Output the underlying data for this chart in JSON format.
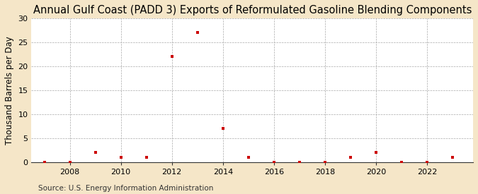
{
  "title": "Annual Gulf Coast (PADD 3) Exports of Reformulated Gasoline Blending Components",
  "ylabel": "Thousand Barrels per Day",
  "source": "Source: U.S. Energy Information Administration",
  "figure_bg_color": "#f5e6c8",
  "axes_bg_color": "#ffffff",
  "years": [
    2007,
    2008,
    2009,
    2010,
    2011,
    2012,
    2013,
    2014,
    2015,
    2016,
    2017,
    2018,
    2019,
    2020,
    2021,
    2022,
    2023
  ],
  "values": [
    0.0,
    0.0,
    2.0,
    1.0,
    1.0,
    22.0,
    27.0,
    7.0,
    1.0,
    0.0,
    0.0,
    0.0,
    1.0,
    2.0,
    0.0,
    0.0,
    1.0
  ],
  "marker_color": "#cc0000",
  "ylim": [
    0,
    30
  ],
  "yticks": [
    0,
    5,
    10,
    15,
    20,
    25,
    30
  ],
  "xticks": [
    2008,
    2010,
    2012,
    2014,
    2016,
    2018,
    2020,
    2022
  ],
  "xlim_left": 2006.5,
  "xlim_right": 2023.8,
  "title_fontsize": 10.5,
  "label_fontsize": 8.5,
  "tick_fontsize": 8,
  "source_fontsize": 7.5
}
